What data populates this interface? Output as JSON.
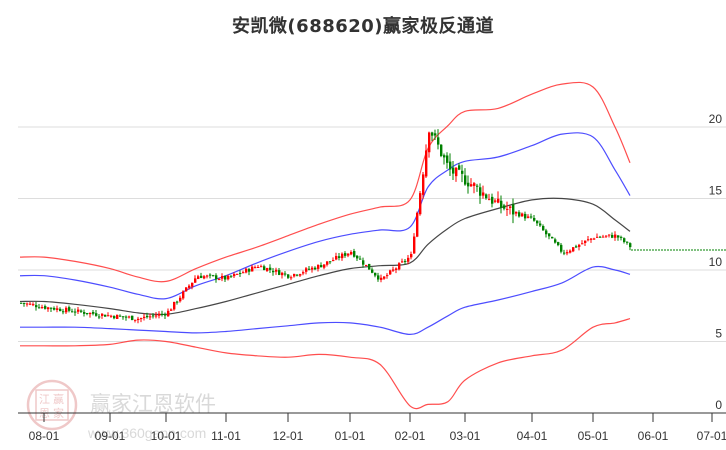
{
  "title": "安凯微(688620)赢家极反通道",
  "watermark": {
    "brand": "赢家江恩软件",
    "url": "www.360gann.com",
    "seal_chars": [
      "江",
      "赢",
      "恩",
      "家"
    ]
  },
  "colors": {
    "outer_band": "#ff3b3b",
    "inner_band": "#3a3aff",
    "middle_line": "#333333",
    "up_candle": "#ff0000",
    "down_candle": "#008000",
    "grid": "#dddddd",
    "projection": "#008000"
  },
  "chart_data": {
    "type": "line",
    "title": "安凯微(688620)赢家极反通道",
    "xlabel": "",
    "ylabel": "",
    "ylim": [
      0,
      23
    ],
    "y_ticks": [
      0,
      5,
      10,
      15,
      20
    ],
    "y_axis_position": "right",
    "grid": true,
    "legend": "none",
    "x_tick_labels": [
      "08-01",
      "09-01",
      "10-01",
      "11-01",
      "12-01",
      "01-01",
      "02-01",
      "03-01",
      "04-01",
      "05-01",
      "06-01",
      "07-01"
    ],
    "x": [
      "07-20",
      "08-01",
      "08-15",
      "09-01",
      "09-15",
      "10-01",
      "10-15",
      "11-01",
      "11-15",
      "12-01",
      "12-15",
      "01-01",
      "01-15",
      "02-01",
      "02-10",
      "02-20",
      "03-01",
      "03-15",
      "04-01",
      "04-15",
      "05-01",
      "05-15",
      "05-25"
    ],
    "series": [
      {
        "name": "outer_upper",
        "color": "#ff3b3b",
        "values": [
          10.9,
          10.9,
          10.6,
          10.1,
          9.5,
          9.2,
          10.1,
          10.9,
          11.6,
          12.4,
          13.2,
          13.9,
          14.4,
          14.9,
          18.5,
          20.1,
          21.1,
          21.3,
          22.3,
          23.0,
          22.8,
          20.0,
          17.5
        ]
      },
      {
        "name": "inner_upper",
        "color": "#3a3aff",
        "values": [
          9.6,
          9.6,
          9.3,
          8.8,
          8.3,
          8.0,
          8.9,
          9.6,
          10.5,
          11.3,
          12.0,
          12.5,
          12.8,
          13.0,
          15.8,
          17.0,
          17.6,
          17.9,
          18.7,
          19.5,
          19.3,
          17.0,
          15.2
        ]
      },
      {
        "name": "middle",
        "color": "#333333",
        "values": [
          7.8,
          7.8,
          7.6,
          7.3,
          7.0,
          6.9,
          7.3,
          7.8,
          8.4,
          9.0,
          9.6,
          10.1,
          10.3,
          10.5,
          11.8,
          12.9,
          13.6,
          14.3,
          14.9,
          15.0,
          14.6,
          13.5,
          12.7
        ]
      },
      {
        "name": "inner_lower",
        "color": "#3a3aff",
        "values": [
          6.0,
          6.0,
          6.0,
          5.9,
          5.8,
          5.7,
          5.6,
          5.7,
          5.9,
          6.1,
          6.3,
          6.3,
          6.0,
          5.5,
          6.0,
          6.8,
          7.4,
          7.9,
          8.5,
          9.1,
          10.2,
          10.0,
          9.7
        ]
      },
      {
        "name": "outer_lower",
        "color": "#ff3b3b",
        "values": [
          4.7,
          4.7,
          4.7,
          4.8,
          5.1,
          5.0,
          4.6,
          4.2,
          4.0,
          3.9,
          4.1,
          3.9,
          3.4,
          0.5,
          0.6,
          0.8,
          2.3,
          3.5,
          4.0,
          4.4,
          6.0,
          6.3,
          6.6
        ]
      },
      {
        "name": "close_price",
        "color": "#008000",
        "values": [
          7.7,
          7.4,
          7.1,
          6.8,
          6.6,
          7.0,
          9.6,
          9.4,
          10.3,
          9.6,
          10.3,
          11.3,
          9.3,
          11.0,
          20.0,
          17.0,
          16.3,
          14.5,
          13.5,
          11.2,
          12.3,
          12.4,
          11.6
        ]
      }
    ],
    "annotations": [
      "Dashed green projection line at ~11.4 extending from 05-25 to chart right edge"
    ]
  },
  "axis": {
    "y_labels": [
      "20",
      "15",
      "10",
      "5",
      "0"
    ],
    "x_labels": [
      "08-01",
      "09-01",
      "10-01",
      "11-01",
      "12-01",
      "01-01",
      "02-01",
      "03-01",
      "04-01",
      "05-01",
      "06-01",
      "07-01"
    ]
  }
}
